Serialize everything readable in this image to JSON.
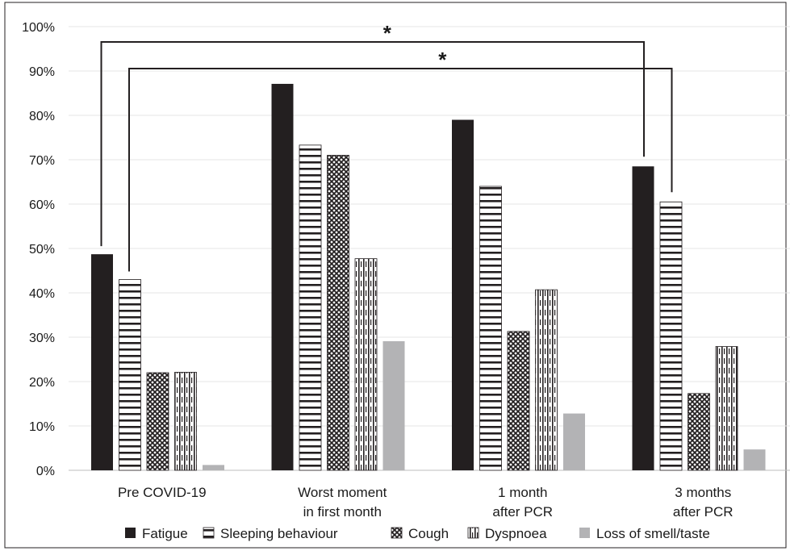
{
  "chart_data": {
    "type": "bar",
    "categories": [
      [
        "Pre COVID-19"
      ],
      [
        "Worst moment",
        "in first month"
      ],
      [
        "1 month",
        "after PCR"
      ],
      [
        "3 months",
        "after PCR"
      ]
    ],
    "series": [
      {
        "name": "Fatigue",
        "values": [
          48.7,
          87.1,
          79.0,
          68.5
        ],
        "color": "#231f20",
        "pattern": "solid"
      },
      {
        "name": "Sleeping behaviour",
        "values": [
          43.0,
          73.3,
          64.0,
          60.5
        ],
        "color": "#231f20",
        "pattern": "horizontal-lines"
      },
      {
        "name": "Cough",
        "values": [
          22.0,
          71.0,
          31.3,
          17.3
        ],
        "color": "#231f20",
        "pattern": "crosshatch"
      },
      {
        "name": "Dyspnoea",
        "values": [
          22.1,
          47.7,
          40.7,
          27.9
        ],
        "color": "#231f20",
        "pattern": "vertical-lines"
      },
      {
        "name": "Loss of smell/taste",
        "values": [
          1.2,
          29.1,
          12.8,
          4.7
        ],
        "color": "#b3b3b5",
        "pattern": "solid"
      }
    ],
    "yticks": [
      "0%",
      "10%",
      "20%",
      "30%",
      "40%",
      "50%",
      "60%",
      "70%",
      "80%",
      "90%",
      "100%"
    ],
    "ylim": [
      0,
      100
    ],
    "grid": false,
    "legend_position": "bottom",
    "annotations": [
      {
        "text": "*",
        "from": {
          "category": 0,
          "series": 0
        },
        "to": {
          "category": 3,
          "series": 0
        }
      },
      {
        "text": "*",
        "from": {
          "category": 0,
          "series": 1
        },
        "to": {
          "category": 3,
          "series": 1
        }
      }
    ]
  }
}
